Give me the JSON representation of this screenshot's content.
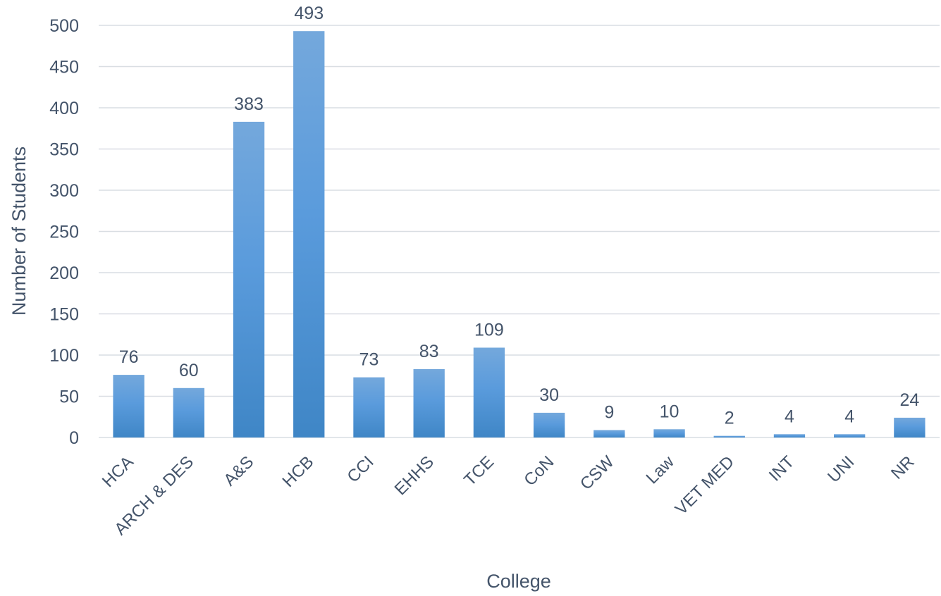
{
  "chart_data": {
    "type": "bar",
    "title": "",
    "xlabel": "College",
    "ylabel": "Number of Students",
    "categories": [
      "HCA",
      "ARCH & DES",
      "A&S",
      "HCB",
      "CCI",
      "EHHS",
      "TCE",
      "CoN",
      "CSW",
      "Law",
      "VET MED",
      "INT",
      "UNI",
      "NR"
    ],
    "values": [
      76,
      60,
      383,
      493,
      73,
      83,
      109,
      30,
      9,
      10,
      2,
      4,
      4,
      24
    ],
    "ylim": [
      0,
      500
    ],
    "yticks": [
      0,
      50,
      100,
      150,
      200,
      250,
      300,
      350,
      400,
      450,
      500
    ],
    "grid": true,
    "legend": "none",
    "colors": {
      "bar_top": "#74a8dc",
      "bar_mid": "#5a9bdc",
      "bar_bottom": "#3f86c6",
      "text": "#44546a",
      "grid": "#d9dde3"
    }
  }
}
